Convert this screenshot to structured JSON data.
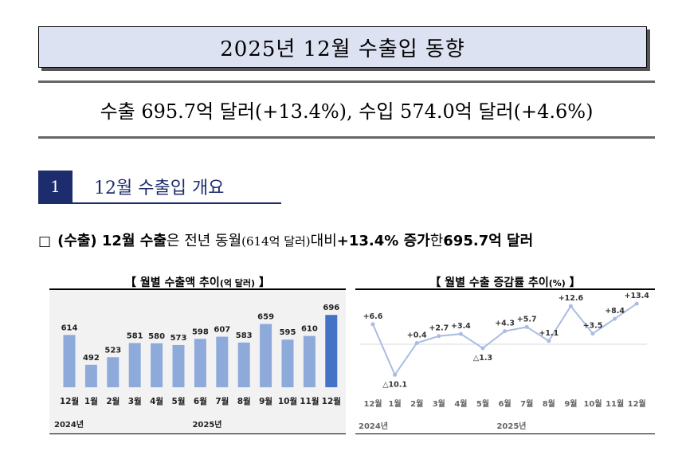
{
  "title": "2025년 12월 수출입 동향",
  "summary": "수출 695.7억 달러(+13.4%), 수입 574.0억 달러(+4.6%)",
  "section": {
    "number": "1",
    "title": "12월 수출입 개요"
  },
  "bullet": {
    "box": "□",
    "p1": "(수출) 12월 수출",
    "p2": "은 전년 동월",
    "p3": "(614억 달러)",
    "p4": " 대비 ",
    "p5": "+13.4% 증가",
    "p6": "한 ",
    "p7": "695.7억 달러"
  },
  "colors": {
    "bar": "#8eaadb",
    "bar_highlight": "#4472c4",
    "line": "#a9bde3",
    "title_bg": "#dde2f2",
    "section_bg": "#1c2c6c"
  },
  "chart_data": [
    {
      "type": "bar",
      "title_main": "【 월별 수출액 추이",
      "title_unit": "(억 달러)",
      "title_end": " 】",
      "categories": [
        "12월",
        "1월",
        "2월",
        "3월",
        "4월",
        "5월",
        "6월",
        "7월",
        "8월",
        "9월",
        "10월",
        "11월",
        "12월"
      ],
      "values": [
        614,
        492,
        523,
        581,
        580,
        573,
        598,
        607,
        583,
        659,
        595,
        610,
        696
      ],
      "year_labels": [
        "2024년",
        "2025년"
      ]
    },
    {
      "type": "line",
      "title_main": "【 월별 수출 증감률 추이",
      "title_unit": "(%)",
      "title_end": " 】",
      "categories": [
        "12월",
        "1월",
        "2월",
        "3월",
        "4월",
        "5월",
        "6월",
        "7월",
        "8월",
        "9월",
        "10월",
        "11월",
        "12월"
      ],
      "values": [
        6.6,
        -10.1,
        0.4,
        2.7,
        3.4,
        -1.3,
        4.3,
        5.7,
        1.1,
        12.6,
        3.5,
        8.4,
        13.4
      ],
      "labels": [
        "+6.6",
        "△10.1",
        "+0.4",
        "+2.7",
        "+3.4",
        "△1.3",
        "+4.3",
        "+5.7",
        "+1.1",
        "+12.6",
        "+3.5",
        "+8.4",
        "+13.4"
      ],
      "year_labels": [
        "2024년",
        "2025년"
      ]
    }
  ]
}
